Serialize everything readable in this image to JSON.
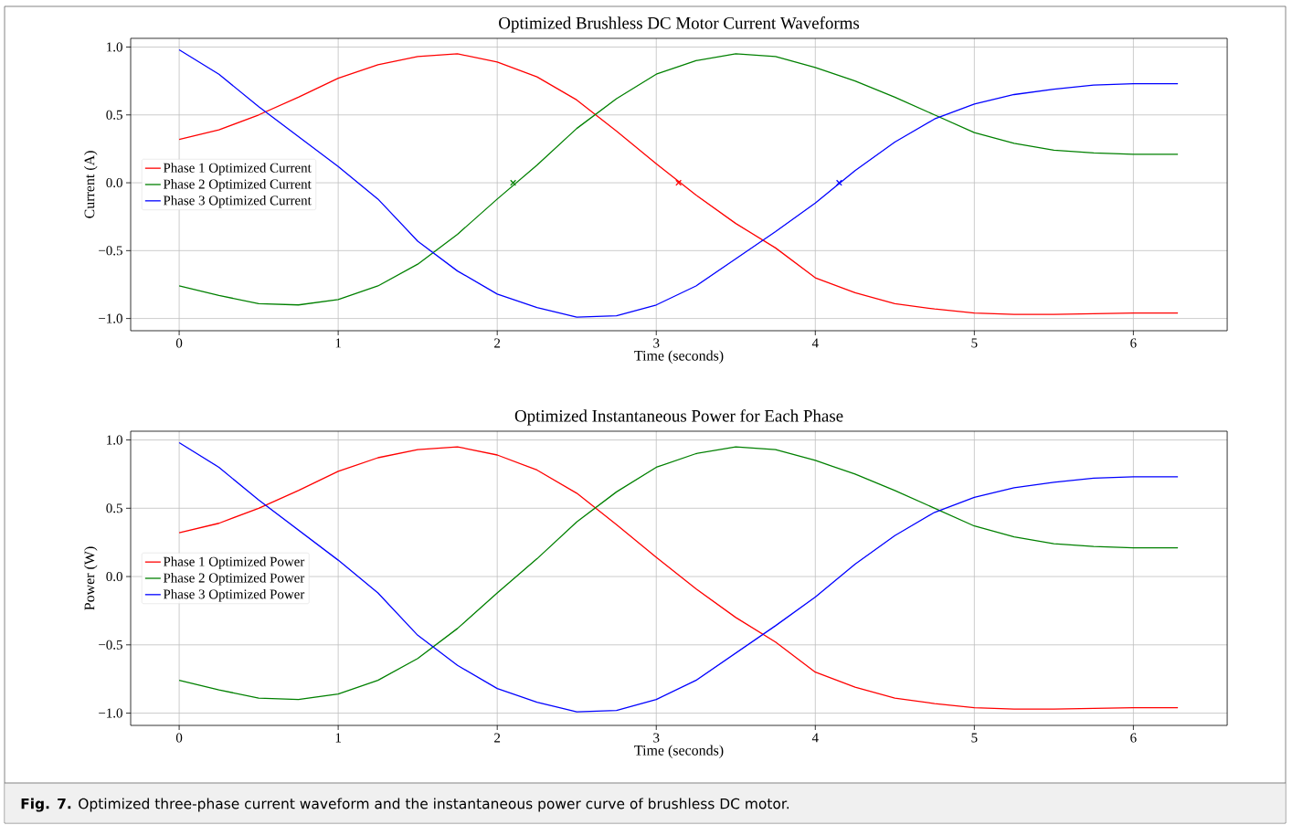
{
  "chart_data": [
    {
      "type": "line",
      "title": "Optimized Brushless DC Motor Current Waveforms",
      "xlabel": "Time (seconds)",
      "ylabel": "Current (A)",
      "xlim": [
        -0.305,
        6.59
      ],
      "ylim": [
        -1.09,
        1.064
      ],
      "xticks": [
        0,
        1,
        2,
        3,
        4,
        5,
        6
      ],
      "yticks": [
        {
          "value": -1,
          "label": "−1.0"
        },
        {
          "value": -0.5,
          "label": "−0.5"
        },
        {
          "value": 0,
          "label": "0.0"
        },
        {
          "value": 0.5,
          "label": "0.5"
        },
        {
          "value": 1,
          "label": "1.0"
        }
      ],
      "grid": true,
      "legend": "left",
      "marker": "none",
      "line_style": "solid",
      "x": [
        0,
        0.25,
        0.5,
        0.75,
        1,
        1.25,
        1.5,
        1.75,
        2,
        2.25,
        2.5,
        2.75,
        3,
        3.25,
        3.5,
        3.75,
        4,
        4.25,
        4.5,
        4.75,
        5,
        5.25,
        5.5,
        5.75,
        6,
        6.28
      ],
      "series": [
        {
          "name": "Phase 1 Optimized Current",
          "color": "#ff0000",
          "values": [
            0.32,
            0.39,
            0.5,
            0.63,
            0.77,
            0.87,
            0.93,
            0.95,
            0.89,
            0.78,
            0.61,
            0.38,
            0.14,
            -0.09,
            -0.3,
            -0.48,
            -0.7,
            -0.81,
            -0.89,
            -0.93,
            -0.96,
            -0.97,
            -0.97,
            -0.965,
            -0.96,
            -0.96
          ]
        },
        {
          "name": "Phase 2 Optimized Current",
          "color": "#008000",
          "values": [
            -0.76,
            -0.83,
            -0.89,
            -0.9,
            -0.86,
            -0.76,
            -0.6,
            -0.38,
            -0.12,
            0.13,
            0.4,
            0.62,
            0.8,
            0.9,
            0.95,
            0.93,
            0.85,
            0.75,
            0.63,
            0.5,
            0.37,
            0.29,
            0.24,
            0.22,
            0.21,
            0.21
          ]
        },
        {
          "name": "Phase 3 Optimized Current",
          "color": "#0000ff",
          "values": [
            0.98,
            0.8,
            0.56,
            0.34,
            0.12,
            -0.12,
            -0.43,
            -0.65,
            -0.82,
            -0.92,
            -0.99,
            -0.98,
            -0.9,
            -0.76,
            -0.56,
            -0.36,
            -0.15,
            0.09,
            0.3,
            0.47,
            0.58,
            0.65,
            0.69,
            0.72,
            0.73,
            0.73
          ]
        },
        {
          "type": "scatter",
          "marker": "cross",
          "color": "#008000",
          "x": [
            2.1
          ],
          "values": [
            0
          ]
        },
        {
          "type": "scatter",
          "marker": "cross",
          "color": "#ff0000",
          "x": [
            3.14
          ],
          "values": [
            0
          ]
        },
        {
          "type": "scatter",
          "marker": "cross",
          "color": "#0000ff",
          "x": [
            4.15
          ],
          "values": [
            0
          ]
        }
      ]
    },
    {
      "type": "line",
      "title": "Optimized Instantaneous Power for Each Phase",
      "xlabel": "Time (seconds)",
      "ylabel": "Power (W)",
      "xlim": [
        -0.305,
        6.59
      ],
      "ylim": [
        -1.09,
        1.064
      ],
      "xticks": [
        0,
        1,
        2,
        3,
        4,
        5,
        6
      ],
      "yticks": [
        {
          "value": -1,
          "label": "−1.0"
        },
        {
          "value": -0.5,
          "label": "−0.5"
        },
        {
          "value": 0,
          "label": "0.0"
        },
        {
          "value": 0.5,
          "label": "0.5"
        },
        {
          "value": 1,
          "label": "1.0"
        }
      ],
      "grid": true,
      "legend": "left",
      "marker": "none",
      "line_style": "solid",
      "x": [
        0,
        0.25,
        0.5,
        0.75,
        1,
        1.25,
        1.5,
        1.75,
        2,
        2.25,
        2.5,
        2.75,
        3,
        3.25,
        3.5,
        3.75,
        4,
        4.25,
        4.5,
        4.75,
        5,
        5.25,
        5.5,
        5.75,
        6,
        6.28
      ],
      "series": [
        {
          "name": "Phase 1 Optimized Power",
          "color": "#ff0000",
          "values": [
            0.32,
            0.39,
            0.5,
            0.63,
            0.77,
            0.87,
            0.93,
            0.95,
            0.89,
            0.78,
            0.61,
            0.38,
            0.14,
            -0.09,
            -0.3,
            -0.48,
            -0.7,
            -0.81,
            -0.89,
            -0.93,
            -0.96,
            -0.97,
            -0.97,
            -0.965,
            -0.96,
            -0.96
          ]
        },
        {
          "name": "Phase 2 Optimized Power",
          "color": "#008000",
          "values": [
            -0.76,
            -0.83,
            -0.89,
            -0.9,
            -0.86,
            -0.76,
            -0.6,
            -0.38,
            -0.12,
            0.13,
            0.4,
            0.62,
            0.8,
            0.9,
            0.95,
            0.93,
            0.85,
            0.75,
            0.63,
            0.5,
            0.37,
            0.29,
            0.24,
            0.22,
            0.21,
            0.21
          ]
        },
        {
          "name": "Phase 3 Optimized Power",
          "color": "#0000ff",
          "values": [
            0.98,
            0.8,
            0.56,
            0.34,
            0.12,
            -0.12,
            -0.43,
            -0.65,
            -0.82,
            -0.92,
            -0.99,
            -0.98,
            -0.9,
            -0.76,
            -0.56,
            -0.36,
            -0.15,
            0.09,
            0.3,
            0.47,
            0.58,
            0.65,
            0.69,
            0.72,
            0.73,
            0.73
          ]
        }
      ],
      "annotations": [
        "**Fig. 7.** Optimized three-phase current waveform and the instantaneous power curve of brushless DC motor."
      ]
    }
  ]
}
